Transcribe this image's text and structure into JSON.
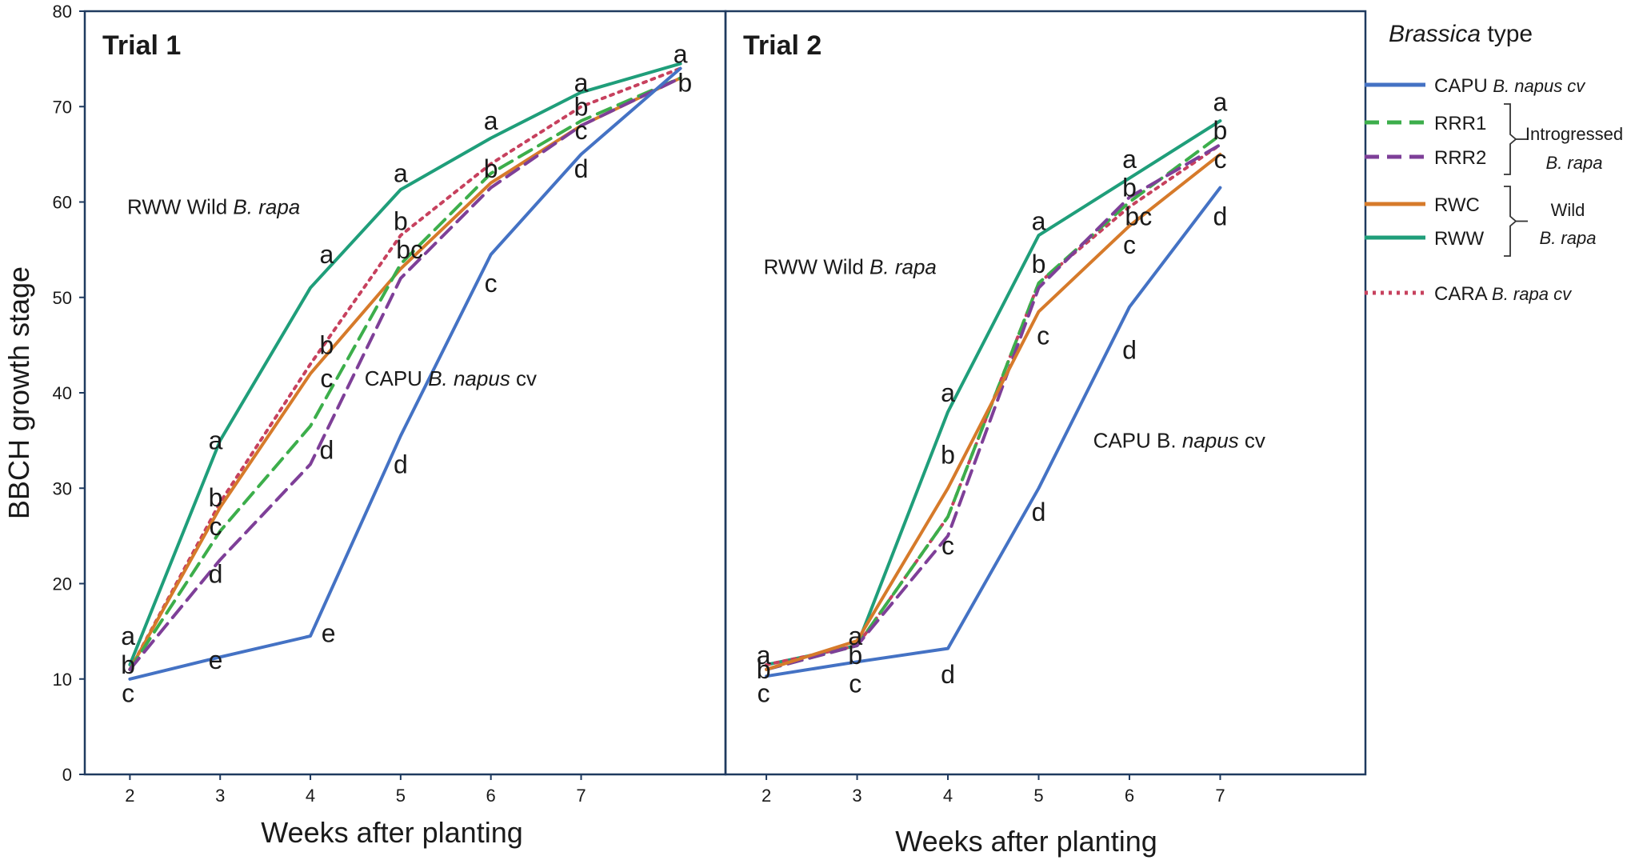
{
  "chart_data": {
    "type": "line",
    "ylabel": "BBCH growth stage",
    "ylim": [
      0,
      80
    ],
    "yticks": [
      "0",
      "10",
      "20",
      "30",
      "40",
      "50",
      "60",
      "70",
      "80"
    ],
    "grid": false,
    "legend": {
      "placement": "right",
      "title_italic": "Brassica",
      "title_rest": " type",
      "entries": [
        {
          "key": "CAPU",
          "label": "CAPU",
          "desc": "B. napus cv",
          "color": "#4472c4",
          "dash": "solid"
        },
        {
          "key": "RRR1",
          "label": "RRR1",
          "desc": "",
          "color": "#3cae4b",
          "dash": "dashed"
        },
        {
          "key": "RRR2",
          "label": "RRR2",
          "desc": "",
          "color": "#7e3f98",
          "dash": "dashed"
        },
        {
          "key": "RWC",
          "label": "RWC",
          "desc": "",
          "color": "#d67a2a",
          "dash": "solid"
        },
        {
          "key": "RWW",
          "label": "RWW",
          "desc": "",
          "color": "#1f9e7a",
          "dash": "solid"
        },
        {
          "key": "CARA",
          "label": "CARA",
          "desc": "B. rapa cv",
          "color": "#c7415e",
          "dash": "dotted"
        }
      ],
      "groups": [
        {
          "line1": "Introgressed",
          "line2": "B. rapa"
        },
        {
          "line1": "Wild",
          "line2": "B. rapa"
        }
      ]
    },
    "panels": [
      {
        "title": "Trial 1",
        "xlabel": "Weeks after planting",
        "xticks": [
          "2",
          "3",
          "4",
          "5",
          "6",
          "7"
        ],
        "xlim": [
          1.5,
          8.6
        ],
        "series": [
          {
            "name": "RWW",
            "x": [
              2,
              3,
              4,
              5,
              6,
              7,
              8.1
            ],
            "values": [
              11.5,
              35,
              51,
              61.3,
              66.7,
              71.5,
              74.5
            ]
          },
          {
            "name": "CARA",
            "x": [
              2,
              3,
              4,
              5,
              6,
              7,
              8.1
            ],
            "values": [
              11,
              28.5,
              43,
              56.5,
              64,
              70,
              74
            ]
          },
          {
            "name": "RWC",
            "x": [
              2,
              3,
              4,
              5,
              6,
              7,
              8.1
            ],
            "values": [
              11,
              28,
              42,
              53,
              62,
              68,
              73
            ]
          },
          {
            "name": "RRR1",
            "x": [
              2,
              3,
              4,
              5,
              6,
              7,
              8.1
            ],
            "values": [
              11,
              25.5,
              36.5,
              53.5,
              63,
              68.5,
              73
            ]
          },
          {
            "name": "RRR2",
            "x": [
              2,
              3,
              4,
              5,
              6,
              7,
              8.1
            ],
            "values": [
              11,
              22.5,
              32.5,
              52,
              61.5,
              68,
              73
            ]
          },
          {
            "name": "CAPU",
            "x": [
              2,
              3,
              4,
              5,
              6,
              7,
              8.1
            ],
            "values": [
              10,
              12.3,
              14.5,
              35.5,
              54.5,
              65,
              74
            ]
          }
        ],
        "sig_labels": [
          {
            "x": 1.98,
            "y": 14.5,
            "text": "a"
          },
          {
            "x": 1.98,
            "y": 11.5,
            "text": "b"
          },
          {
            "x": 1.98,
            "y": 8.5,
            "text": "c"
          },
          {
            "x": 2.95,
            "y": 35,
            "text": "a"
          },
          {
            "x": 2.95,
            "y": 29,
            "text": "b"
          },
          {
            "x": 2.95,
            "y": 26,
            "text": "c"
          },
          {
            "x": 2.95,
            "y": 21,
            "text": "d"
          },
          {
            "x": 2.95,
            "y": 12,
            "text": "e"
          },
          {
            "x": 4.2,
            "y": 14.8,
            "text": "e"
          },
          {
            "x": 4.18,
            "y": 54.5,
            "text": "a"
          },
          {
            "x": 4.18,
            "y": 45,
            "text": "b"
          },
          {
            "x": 4.18,
            "y": 41.5,
            "text": "c"
          },
          {
            "x": 4.18,
            "y": 34,
            "text": "d"
          },
          {
            "x": 5.0,
            "y": 63,
            "text": "a"
          },
          {
            "x": 5.0,
            "y": 58,
            "text": "b"
          },
          {
            "x": 5.1,
            "y": 55,
            "text": "bc"
          },
          {
            "x": 5.0,
            "y": 32.5,
            "text": "d"
          },
          {
            "x": 6.0,
            "y": 68.5,
            "text": "a"
          },
          {
            "x": 6.0,
            "y": 63.5,
            "text": "b"
          },
          {
            "x": 6.0,
            "y": 51.5,
            "text": "c"
          },
          {
            "x": 7.0,
            "y": 72.5,
            "text": "a"
          },
          {
            "x": 7.0,
            "y": 70,
            "text": "b"
          },
          {
            "x": 7.0,
            "y": 67.5,
            "text": "c"
          },
          {
            "x": 7.0,
            "y": 63.5,
            "text": "d"
          },
          {
            "x": 8.1,
            "y": 75.5,
            "text": "a"
          },
          {
            "x": 8.15,
            "y": 72.5,
            "text": "b"
          }
        ],
        "annotations": [
          {
            "x": 1.97,
            "y": 59.5,
            "text": "RWW Wild ",
            "italic": "B. rapa",
            "after": ""
          },
          {
            "x": 4.6,
            "y": 41.5,
            "text": "CAPU ",
            "italic": "B. napus",
            "after": " cv"
          }
        ]
      },
      {
        "title": "Trial 2",
        "xlabel": "Weeks after planting",
        "xticks": [
          "2",
          "3",
          "4",
          "5",
          "6",
          "7"
        ],
        "xlim": [
          1.55,
          8.6
        ],
        "series": [
          {
            "name": "RWW",
            "x": [
              2,
              3,
              4,
              5,
              6,
              7
            ],
            "values": [
              11.5,
              13.5,
              38,
              56.5,
              62.5,
              68.5
            ]
          },
          {
            "name": "CARA",
            "x": [
              2,
              3,
              4,
              5,
              6,
              7
            ],
            "values": [
              11.5,
              13.5,
              27,
              51.5,
              59.5,
              66
            ]
          },
          {
            "name": "RRR1",
            "x": [
              2,
              3,
              4,
              5,
              6,
              7
            ],
            "values": [
              11,
              13.5,
              27,
              51.5,
              60,
              67
            ]
          },
          {
            "name": "RRR2",
            "x": [
              2,
              3,
              4,
              5,
              6,
              7
            ],
            "values": [
              11,
              13.5,
              25,
              51,
              60.5,
              66
            ]
          },
          {
            "name": "RWC",
            "x": [
              2,
              3,
              4,
              5,
              6,
              7
            ],
            "values": [
              11,
              14,
              30,
              48.5,
              57.5,
              65
            ]
          },
          {
            "name": "CAPU",
            "x": [
              2,
              3,
              4,
              5,
              6,
              7
            ],
            "values": [
              10.3,
              11.8,
              13.2,
              30,
              49,
              61.5
            ]
          }
        ],
        "sig_labels": [
          {
            "x": 1.97,
            "y": 12.5,
            "text": "a"
          },
          {
            "x": 1.97,
            "y": 11,
            "text": "b"
          },
          {
            "x": 1.97,
            "y": 8.5,
            "text": "c"
          },
          {
            "x": 2.98,
            "y": 14.5,
            "text": "a"
          },
          {
            "x": 2.98,
            "y": 12.5,
            "text": "b"
          },
          {
            "x": 2.98,
            "y": 9.5,
            "text": "c"
          },
          {
            "x": 4.0,
            "y": 40,
            "text": "a"
          },
          {
            "x": 4.0,
            "y": 33.5,
            "text": "b"
          },
          {
            "x": 4.0,
            "y": 24,
            "text": "c"
          },
          {
            "x": 4.0,
            "y": 10.5,
            "text": "d"
          },
          {
            "x": 5.0,
            "y": 58,
            "text": "a"
          },
          {
            "x": 5.0,
            "y": 53.5,
            "text": "b"
          },
          {
            "x": 5.05,
            "y": 46,
            "text": "c"
          },
          {
            "x": 5.0,
            "y": 27.5,
            "text": "d"
          },
          {
            "x": 6.0,
            "y": 64.5,
            "text": "a"
          },
          {
            "x": 6.0,
            "y": 61.5,
            "text": "b"
          },
          {
            "x": 6.1,
            "y": 58.5,
            "text": "bc"
          },
          {
            "x": 6.0,
            "y": 55.5,
            "text": "c"
          },
          {
            "x": 6.0,
            "y": 44.5,
            "text": "d"
          },
          {
            "x": 7.0,
            "y": 70.5,
            "text": "a"
          },
          {
            "x": 7.0,
            "y": 67.5,
            "text": "b"
          },
          {
            "x": 7.0,
            "y": 64.5,
            "text": "c"
          },
          {
            "x": 7.0,
            "y": 58.5,
            "text": "d"
          }
        ],
        "annotations": [
          {
            "x": 1.97,
            "y": 53.2,
            "text": "RWW Wild ",
            "italic": "B. rapa",
            "after": ""
          },
          {
            "x": 5.6,
            "y": 35,
            "text": "CAPU B. ",
            "italic": "napus",
            "after": " cv"
          }
        ]
      }
    ]
  }
}
